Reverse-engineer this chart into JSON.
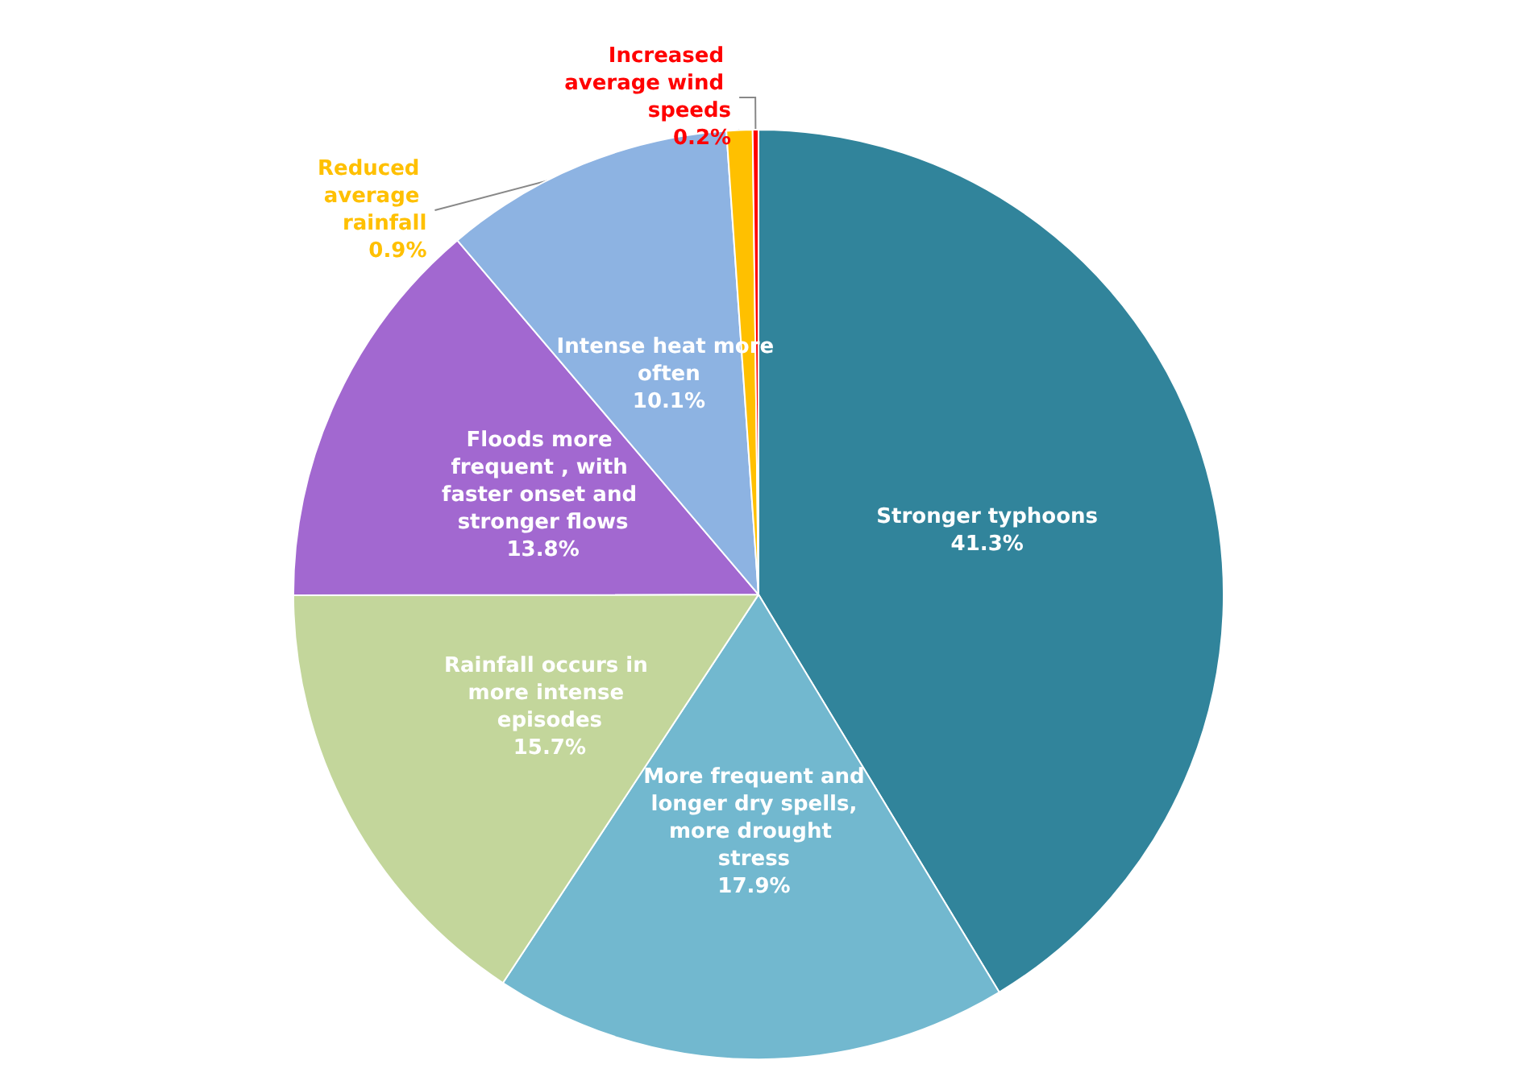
{
  "chart_data": {
    "type": "pie",
    "categories": [
      "Stronger typhoons",
      "More frequent and longer dry spells, more drought stress",
      "Rainfall occurs in more intense episodes",
      "Floods more frequent , with faster onset and stronger flows",
      "Intense heat more often",
      "Reduced average rainfall",
      "Increased average wind speeds"
    ],
    "values": [
      41.3,
      17.9,
      15.7,
      13.8,
      10.1,
      0.9,
      0.2
    ],
    "value_labels": [
      "41.3%",
      "17.9%",
      "15.7%",
      "13.8%",
      "10.1%",
      "0.9%",
      "0.2%"
    ],
    "colors": [
      "#31849b",
      "#72b8cf",
      "#c3d69b",
      "#a268d0",
      "#8db3e2",
      "#ffc000",
      "#ff0000"
    ],
    "legend": false
  }
}
